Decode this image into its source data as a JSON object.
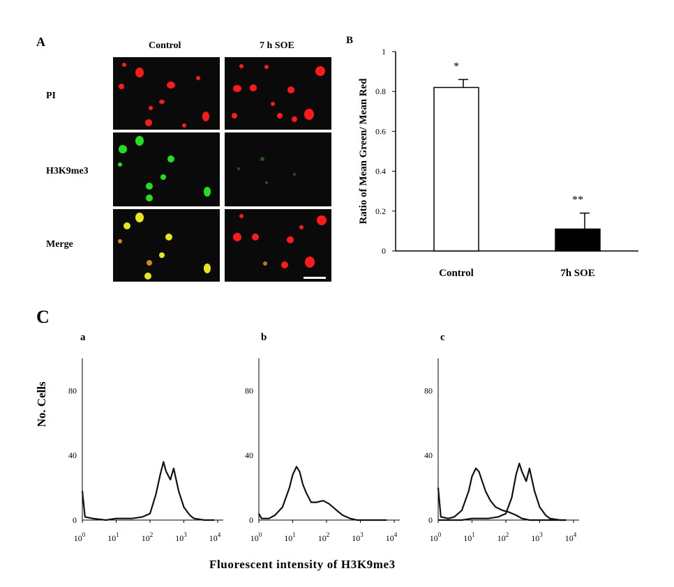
{
  "panels": {
    "a_label": "A",
    "b_label": "B",
    "c_label": "C"
  },
  "micrographs": {
    "columns": [
      "Control",
      "7 h SOE"
    ],
    "rows": [
      "PI",
      "H3K9me3",
      "Merge"
    ],
    "colors": {
      "red": "#ff1a1a",
      "green": "#22e01a",
      "yellow": "#e6e619",
      "background": "#0a0a0a"
    }
  },
  "chart_data": [
    {
      "type": "bar",
      "categories": [
        "Control",
        "7h SOE"
      ],
      "values": [
        0.82,
        0.11
      ],
      "errors": [
        0.04,
        0.08
      ],
      "significance": [
        "*",
        "**"
      ],
      "bar_fill": [
        "#ffffff",
        "#000000"
      ],
      "ylabel": "Ratio of Mean Green/ Mean Red",
      "ylim": [
        0,
        1
      ],
      "yticks": [
        "0",
        "0.2",
        "0.4",
        "0.6",
        "0.8",
        "1"
      ],
      "grid": false
    },
    {
      "type": "line",
      "subpanel": "a",
      "x_scale": "log",
      "x_ticks": [
        1,
        10,
        100,
        1000,
        10000
      ],
      "y_ticks": [
        "0",
        "40",
        "80"
      ],
      "ylim": [
        0,
        100
      ],
      "series": [
        {
          "x": [
            1,
            1.2,
            2,
            5,
            10,
            30,
            60,
            100,
            150,
            200,
            250,
            300,
            400,
            500,
            700,
            1000,
            1500,
            2000,
            4000,
            8000
          ],
          "y": [
            18,
            2,
            1,
            0,
            1,
            1,
            2,
            4,
            16,
            28,
            36,
            30,
            25,
            32,
            18,
            8,
            3,
            1,
            0,
            0
          ]
        }
      ]
    },
    {
      "type": "line",
      "subpanel": "b",
      "x_scale": "log",
      "x_ticks": [
        1,
        10,
        100,
        1000,
        10000
      ],
      "y_ticks": [
        "0",
        "40",
        "80"
      ],
      "ylim": [
        0,
        100
      ],
      "series": [
        {
          "x": [
            1,
            1.2,
            2,
            3,
            5,
            8,
            10,
            13,
            16,
            20,
            25,
            35,
            50,
            80,
            120,
            200,
            300,
            500,
            800,
            1500,
            3000,
            6000
          ],
          "y": [
            4,
            1,
            1,
            3,
            8,
            20,
            28,
            33,
            30,
            22,
            17,
            11,
            11,
            12,
            10,
            6,
            3,
            1,
            0,
            0,
            0,
            0
          ]
        }
      ]
    },
    {
      "type": "line",
      "subpanel": "c",
      "x_scale": "log",
      "x_ticks": [
        1,
        10,
        100,
        1000,
        10000
      ],
      "y_ticks": [
        "0",
        "40",
        "80"
      ],
      "ylim": [
        0,
        100
      ],
      "series": [
        {
          "x": [
            1,
            1.2,
            2,
            3,
            5,
            8,
            10,
            13,
            16,
            20,
            25,
            35,
            50,
            80,
            120,
            200,
            300,
            500,
            800,
            1500,
            3000,
            6000
          ],
          "y": [
            20,
            2,
            1,
            2,
            6,
            18,
            27,
            32,
            30,
            24,
            18,
            12,
            8,
            6,
            5,
            3,
            1,
            0,
            0,
            0,
            0,
            0
          ]
        },
        {
          "x": [
            1,
            5,
            10,
            30,
            60,
            100,
            150,
            200,
            250,
            300,
            400,
            500,
            700,
            1000,
            1500,
            2000,
            4000,
            6000
          ],
          "y": [
            0,
            0,
            1,
            1,
            2,
            4,
            14,
            28,
            35,
            30,
            24,
            32,
            18,
            8,
            3,
            1,
            0,
            0
          ]
        }
      ]
    }
  ],
  "histogram_text": {
    "sub_a": "a",
    "sub_b": "b",
    "sub_c": "c",
    "ylabel": "No. Cells",
    "xlabel": "Fluorescent intensity of H3K9me3"
  }
}
